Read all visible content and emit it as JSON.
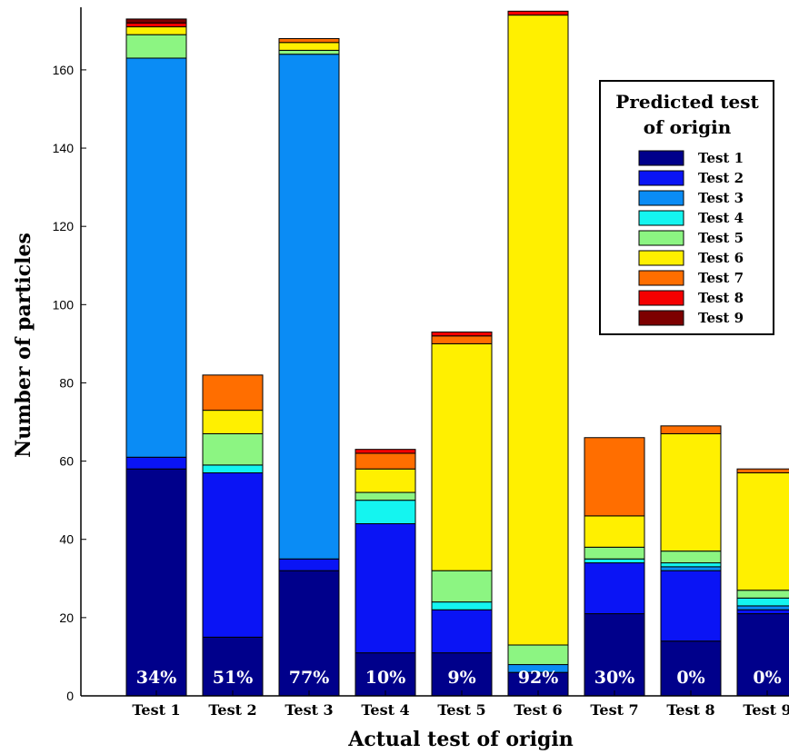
{
  "chart_data": {
    "type": "bar",
    "stacked": true,
    "xlabel": "Actual test of origin",
    "ylabel": "Number of particles",
    "ylim": [
      0,
      176
    ],
    "yticks": [
      0,
      20,
      40,
      60,
      80,
      100,
      120,
      140,
      160
    ],
    "categories": [
      "Test 1",
      "Test 2",
      "Test 3",
      "Test 4",
      "Test 5",
      "Test 6",
      "Test 7",
      "Test 8",
      "Test 9"
    ],
    "accuracy_labels": [
      "34%",
      "51%",
      "77%",
      "10%",
      "9%",
      "92%",
      "30%",
      "0%",
      "0%"
    ],
    "legend_title_lines": [
      "Predicted test",
      "of origin"
    ],
    "legend_position": "top-right",
    "series": [
      {
        "name": "Test 1",
        "color": "#00008b",
        "values": [
          58,
          15,
          32,
          11,
          11,
          6,
          21,
          14,
          21
        ]
      },
      {
        "name": "Test 2",
        "color": "#0a14f5",
        "values": [
          3,
          42,
          3,
          33,
          11,
          0,
          13,
          18,
          1
        ]
      },
      {
        "name": "Test 3",
        "color": "#0a8cf5",
        "values": [
          102,
          0,
          129,
          0,
          0,
          2,
          0,
          1,
          1
        ]
      },
      {
        "name": "Test 4",
        "color": "#14f5f0",
        "values": [
          0,
          2,
          0,
          6,
          2,
          0,
          1,
          1,
          2
        ]
      },
      {
        "name": "Test 5",
        "color": "#8cf582",
        "values": [
          6,
          8,
          1,
          2,
          8,
          5,
          3,
          3,
          2
        ]
      },
      {
        "name": "Test 6",
        "color": "#fff000",
        "values": [
          2,
          6,
          2,
          6,
          58,
          161,
          8,
          30,
          30
        ]
      },
      {
        "name": "Test 7",
        "color": "#ff6e00",
        "values": [
          0,
          9,
          1,
          4,
          2,
          0,
          20,
          2,
          1
        ]
      },
      {
        "name": "Test 8",
        "color": "#f50000",
        "values": [
          1,
          0,
          0,
          1,
          1,
          1,
          0,
          0,
          0
        ]
      },
      {
        "name": "Test 9",
        "color": "#7d0000",
        "values": [
          1,
          0,
          0,
          0,
          0,
          0,
          0,
          0,
          0
        ]
      }
    ]
  }
}
